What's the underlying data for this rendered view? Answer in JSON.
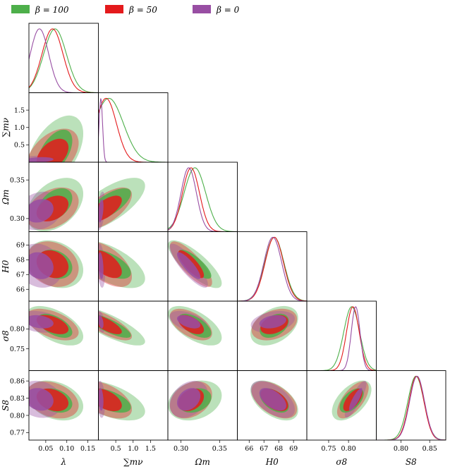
{
  "chart_data": {
    "type": "corner",
    "parameters": [
      {
        "key": "lambda",
        "label": "λ",
        "range": [
          0.01,
          0.175
        ],
        "ticks": [
          0.05,
          0.1,
          0.15
        ],
        "tick_labels": [
          "0.05",
          "0.10",
          "0.15"
        ]
      },
      {
        "key": "sum_mnu",
        "label": "∑mν",
        "range": [
          0.0,
          2.0
        ],
        "ticks": [
          0.5,
          1.0,
          1.5
        ],
        "tick_labels": [
          "0.5",
          "1.0",
          "1.5"
        ]
      },
      {
        "key": "omega_m",
        "label": "Ωm",
        "range": [
          0.283,
          0.373
        ],
        "ticks": [
          0.3,
          0.35
        ],
        "tick_labels": [
          "0.30",
          "0.35"
        ]
      },
      {
        "key": "h0",
        "label": "H0",
        "range": [
          65.2,
          69.9
        ],
        "ticks": [
          66,
          67,
          68,
          69
        ],
        "tick_labels": [
          "66",
          "67",
          "68",
          "69"
        ]
      },
      {
        "key": "sigma8",
        "label": "σ8",
        "range": [
          0.695,
          0.87
        ],
        "ticks": [
          0.75,
          0.8
        ],
        "tick_labels": [
          "0.75",
          "0.80"
        ]
      },
      {
        "key": "s8",
        "label": "S8",
        "range": [
          0.757,
          0.878
        ],
        "ticks": [
          0.77,
          0.8,
          0.83,
          0.86
        ],
        "tick_labels": [
          "0.77",
          "0.80",
          "0.83",
          "0.86"
        ],
        "x_ticks": [
          0.8,
          0.85
        ],
        "x_tick_labels": [
          "0.80",
          "0.85"
        ]
      }
    ],
    "series": [
      {
        "name": "β = 100",
        "color": "#4daf4a",
        "mean": {
          "lambda": 0.072,
          "sum_mnu": 0.3,
          "omega_m": 0.318,
          "h0": 67.7,
          "sigma8": 0.808,
          "s8": 0.826
        },
        "sigma": {
          "lambda": 0.027,
          "sum_mnu": 0.42,
          "omega_m": 0.014,
          "h0": 0.65,
          "sigma8": 0.02,
          "s8": 0.014
        },
        "corr": {
          "lambda|sum_mnu": 0.5,
          "lambda|omega_m": 0.4,
          "lambda|h0": -0.25,
          "lambda|sigma8": -0.55,
          "lambda|s8": -0.3,
          "sum_mnu|omega_m": 0.7,
          "sum_mnu|h0": -0.6,
          "sum_mnu|sigma8": -0.8,
          "sum_mnu|s8": -0.55,
          "omega_m|h0": -0.8,
          "omega_m|sigma8": -0.6,
          "omega_m|s8": 0.25,
          "h0|sigma8": 0.4,
          "h0|s8": -0.5,
          "sigma8|s8": 0.55
        }
      },
      {
        "name": "β = 50",
        "color": "#e41a1c",
        "mean": {
          "lambda": 0.066,
          "sum_mnu": 0.22,
          "omega_m": 0.313,
          "h0": 67.7,
          "sigma8": 0.811,
          "s8": 0.827
        },
        "sigma": {
          "lambda": 0.025,
          "sum_mnu": 0.3,
          "omega_m": 0.011,
          "h0": 0.62,
          "sigma8": 0.016,
          "s8": 0.013
        },
        "corr": {
          "lambda|sum_mnu": 0.45,
          "lambda|omega_m": 0.35,
          "lambda|h0": -0.2,
          "lambda|sigma8": -0.5,
          "lambda|s8": -0.3,
          "sum_mnu|omega_m": 0.65,
          "sum_mnu|h0": -0.55,
          "sum_mnu|sigma8": -0.75,
          "sum_mnu|s8": -0.5,
          "omega_m|h0": -0.8,
          "omega_m|sigma8": -0.55,
          "omega_m|s8": 0.3,
          "h0|sigma8": 0.35,
          "h0|s8": -0.5,
          "sigma8|s8": 0.65
        }
      },
      {
        "name": "β = 0",
        "color": "#984ea3",
        "mean": {
          "lambda": 0.035,
          "sum_mnu": 0.07,
          "omega_m": 0.31,
          "h0": 67.6,
          "sigma8": 0.818,
          "s8": 0.828
        },
        "sigma": {
          "lambda": 0.022,
          "sum_mnu": 0.05,
          "omega_m": 0.01,
          "h0": 0.6,
          "sigma8": 0.011,
          "s8": 0.013
        },
        "corr": {
          "lambda|sum_mnu": 0.2,
          "lambda|omega_m": 0.2,
          "lambda|h0": -0.15,
          "lambda|sigma8": -0.25,
          "lambda|s8": -0.15,
          "sum_mnu|omega_m": 0.4,
          "sum_mnu|h0": -0.3,
          "sum_mnu|sigma8": -0.4,
          "sum_mnu|s8": -0.2,
          "omega_m|h0": -0.85,
          "omega_m|sigma8": -0.5,
          "omega_m|s8": 0.3,
          "h0|sigma8": 0.3,
          "h0|s8": -0.55,
          "sigma8|s8": 0.85
        }
      }
    ],
    "contour_levels": [
      "68%",
      "95%"
    ],
    "legend": {
      "placement": "top-left",
      "entries": [
        "β = 100",
        "β = 50",
        "β = 0"
      ]
    }
  }
}
